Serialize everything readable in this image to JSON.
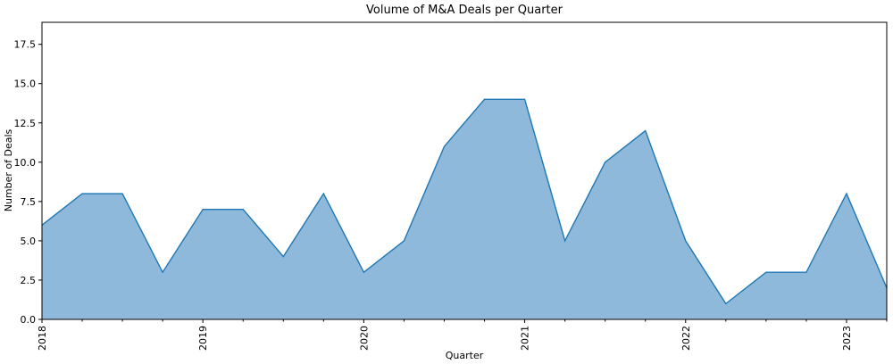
{
  "chart_data": {
    "type": "area",
    "title": "Volume of M&A Deals per Quarter",
    "xlabel": "Quarter",
    "ylabel": "Number of Deals",
    "x": [
      "2018Q1",
      "2018Q2",
      "2018Q3",
      "2018Q4",
      "2019Q1",
      "2019Q2",
      "2019Q3",
      "2019Q4",
      "2020Q1",
      "2020Q2",
      "2020Q3",
      "2020Q4",
      "2021Q1",
      "2021Q2",
      "2021Q3",
      "2021Q4",
      "2022Q1",
      "2022Q2",
      "2022Q3",
      "2022Q4",
      "2023Q1",
      "2023Q2"
    ],
    "values": [
      6,
      8,
      8,
      3,
      7,
      7,
      4,
      8,
      3,
      5,
      11,
      14,
      14,
      5,
      10,
      12,
      5,
      1,
      3,
      3,
      8,
      2
    ],
    "x_tick_labels": [
      "2018",
      "2019",
      "2020",
      "2021",
      "2022",
      "2023"
    ],
    "y_ticks": [
      0.0,
      2.5,
      5.0,
      7.5,
      10.0,
      12.5,
      15.0,
      17.5
    ],
    "y_tick_labels": [
      "0.0",
      "2.5",
      "5.0",
      "7.5",
      "10.0",
      "12.5",
      "15.0",
      "17.5"
    ],
    "ylim": [
      0,
      18.9
    ],
    "grid": false,
    "colors": {
      "fill": "#8fb9da",
      "line": "#1f77b4"
    }
  }
}
